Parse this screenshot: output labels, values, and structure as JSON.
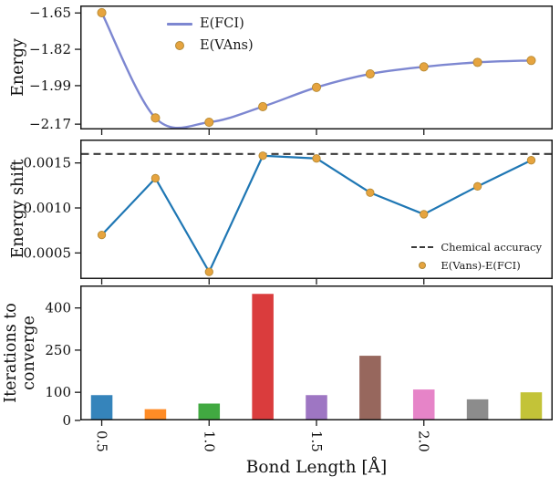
{
  "labels": {
    "energy_axis": "Energy",
    "energy_shift_axis": "Energy shift",
    "iterations_axis": "Iterations to\nconverge",
    "x_axis": "Bond Length [Å]"
  },
  "chart_data": [
    {
      "type": "line",
      "title": "",
      "ylabel": "Energy",
      "x": [
        0.5,
        0.75,
        1.0,
        1.25,
        1.5,
        1.75,
        2.0,
        2.25,
        2.5
      ],
      "xlim": [
        0.4,
        2.6
      ],
      "ylim": [
        -2.195,
        -1.615
      ],
      "grid": false,
      "yticks": {
        "values": [
          -1.65,
          -1.82,
          -1.99,
          -2.17
        ],
        "labels": [
          "−1.65",
          "−1.82",
          "−1.99",
          "−2.17"
        ]
      },
      "xticks": {
        "values": [
          0.5,
          1.0,
          1.5,
          2.0
        ],
        "labels": [
          "",
          "",
          "",
          ""
        ]
      },
      "series": [
        {
          "name": "E(FCI)",
          "kind": "line",
          "smooth": true,
          "color": "#7d87d1",
          "line_width": 2.4,
          "values": [
            -1.649,
            -2.141,
            -2.161,
            -2.088,
            -1.998,
            -1.935,
            -1.902,
            -1.881,
            -1.872
          ]
        },
        {
          "name": "E(VAns)",
          "kind": "scatter",
          "color": "#e6a43f",
          "edge_color": "#b78a33",
          "marker_size": 4.6,
          "values": [
            -1.649,
            -2.141,
            -2.161,
            -2.088,
            -1.998,
            -1.935,
            -1.902,
            -1.881,
            -1.872
          ]
        }
      ],
      "legend": {
        "position": "upper-left",
        "entries": [
          {
            "label": "E(FCI)",
            "marker": "line"
          },
          {
            "label": "E(VAns)",
            "marker": "dot"
          }
        ]
      }
    },
    {
      "type": "line",
      "title": "",
      "ylabel": "Energy shift",
      "x": [
        0.5,
        0.75,
        1.0,
        1.25,
        1.5,
        1.75,
        2.0,
        2.25,
        2.5
      ],
      "xlim": [
        0.4,
        2.6
      ],
      "ylim": [
        0.00021,
        0.00176
      ],
      "grid": false,
      "yticks": {
        "values": [
          0.0005,
          0.001,
          0.0015
        ],
        "labels": [
          "0.0005",
          "0.0010",
          "0.0015"
        ]
      },
      "xticks": {
        "values": [
          0.5,
          1.0,
          1.5,
          2.0
        ],
        "labels": [
          "",
          "",
          "",
          ""
        ]
      },
      "series": [
        {
          "name": "Chemical accuracy",
          "kind": "hline",
          "value": 0.0016,
          "color": "#3b3b3b",
          "dash": [
            8,
            5
          ],
          "line_width": 2.2
        },
        {
          "name": "E(Vans)-E(FCI)",
          "kind": "line",
          "smooth": false,
          "color": "#1f77b4",
          "line_width": 2.2,
          "values": [
            0.0007,
            0.00133,
            0.00029,
            0.00158,
            0.00155,
            0.00117,
            0.00093,
            0.00124,
            0.00153
          ]
        },
        {
          "name": "E(Vans)-E(FCI) markers",
          "kind": "scatter",
          "color": "#e6a43f",
          "edge_color": "#b78a33",
          "marker_size": 4.2,
          "values": [
            0.0007,
            0.00133,
            0.00029,
            0.00158,
            0.00155,
            0.00117,
            0.00093,
            0.00124,
            0.00153
          ]
        }
      ],
      "legend": {
        "position": "lower-right",
        "entries": [
          {
            "label": "Chemical accuracy",
            "marker": "dash"
          },
          {
            "label": "E(Vans)-E(FCI)",
            "marker": "dot"
          }
        ]
      }
    },
    {
      "type": "bar",
      "title": "",
      "ylabel": "Iterations to converge",
      "xlabel": "Bond Length [Å]",
      "x": [
        0.5,
        0.75,
        1.0,
        1.25,
        1.5,
        1.75,
        2.0,
        2.25,
        2.5
      ],
      "xlim": [
        0.4,
        2.6
      ],
      "ylim": [
        0,
        480
      ],
      "grid": false,
      "bar_width": 0.1,
      "yticks": {
        "values": [
          0,
          100,
          250,
          400
        ],
        "labels": [
          "0",
          "100",
          "250",
          "400"
        ]
      },
      "xticks": {
        "values": [
          0.5,
          1.0,
          1.5,
          2.0
        ],
        "labels": [
          "0.5",
          "1.0",
          "1.5",
          "2.0"
        ]
      },
      "series": [
        {
          "name": "Iterations to converge",
          "kind": "bar",
          "values": [
            90,
            40,
            60,
            450,
            90,
            230,
            110,
            75,
            100
          ],
          "colors": [
            "#1f77b4",
            "#ff7f0e",
            "#2ca02c",
            "#d62728",
            "#9467bd",
            "#8c564b",
            "#e377c2",
            "#7f7f7f",
            "#bcbd22"
          ]
        }
      ]
    }
  ]
}
